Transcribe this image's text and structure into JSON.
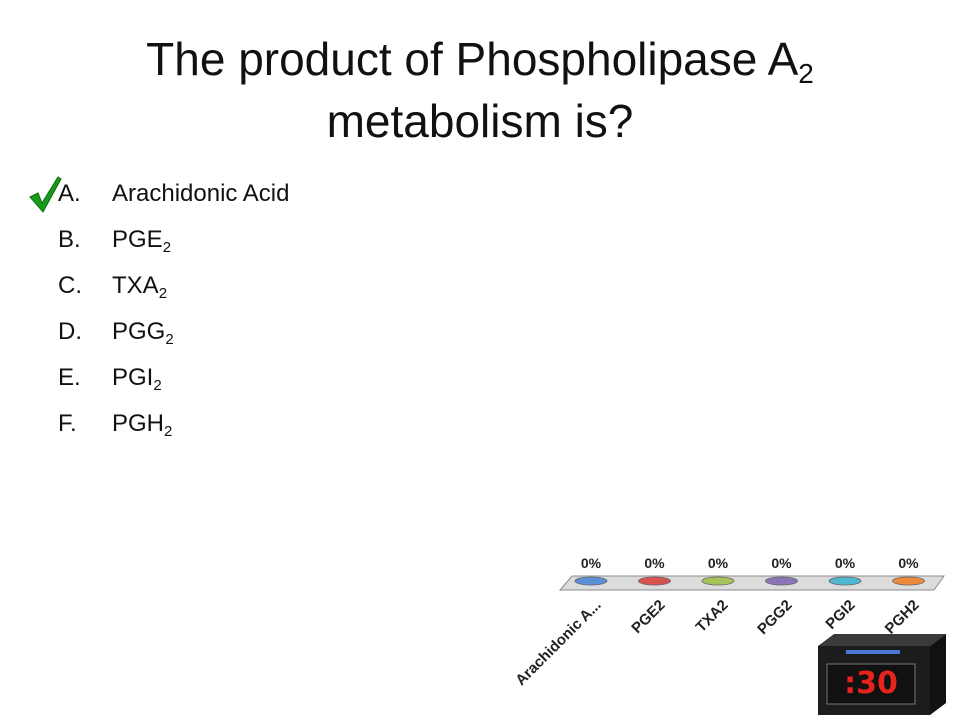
{
  "question": {
    "title_main": "The product of Phospholipase A",
    "title_sub": "2",
    "title_line2": "metabolism is?"
  },
  "answers": [
    {
      "letter": "A.",
      "text": "Arachidonic Acid",
      "sub": ""
    },
    {
      "letter": "B.",
      "text": "PGE",
      "sub": "2"
    },
    {
      "letter": "C.",
      "text": "TXA",
      "sub": "2"
    },
    {
      "letter": "D.",
      "text": "PGG",
      "sub": "2"
    },
    {
      "letter": "E.",
      "text": "PGI",
      "sub": "2"
    },
    {
      "letter": "F.",
      "text": "PGH",
      "sub": "2"
    }
  ],
  "correct_icon": "checkmark-icon",
  "chart_data": {
    "type": "bar",
    "categories": [
      "Arachidonic A...",
      "PGE2",
      "TXA2",
      "PGG2",
      "PGI2",
      "PGH2"
    ],
    "values": [
      0,
      0,
      0,
      0,
      0,
      0
    ],
    "value_labels": [
      "0%",
      "0%",
      "0%",
      "0%",
      "0%",
      "0%"
    ],
    "colors": [
      "#5b8fd6",
      "#d9534f",
      "#a6c35a",
      "#8a74b5",
      "#4fb7d0",
      "#ee8a3c"
    ],
    "ylim": [
      0,
      100
    ]
  },
  "timer": {
    "label": ":30"
  },
  "colors": {
    "check": "#1a9a1a",
    "timer_text": "#e8231c",
    "timer_body": "#1c1c1c"
  }
}
